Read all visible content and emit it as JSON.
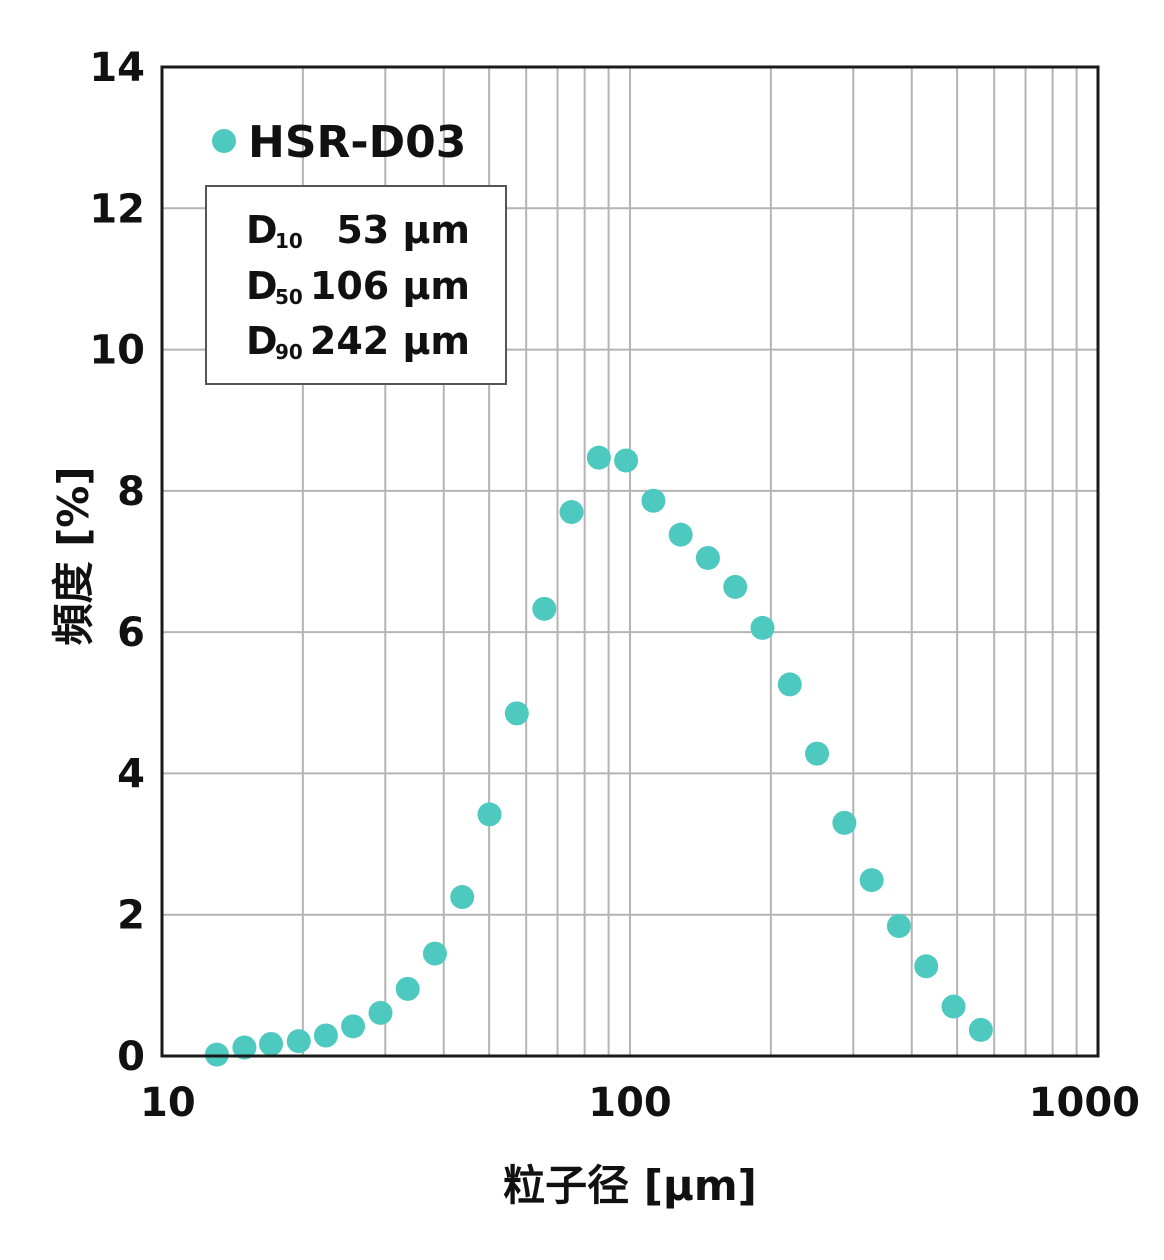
{
  "chart_data": {
    "type": "scatter",
    "xlabel": "粒子径 [µm]",
    "ylabel": "頻度 [%]",
    "x_scale": "log",
    "xlim": [
      10,
      1000
    ],
    "ylim": [
      0,
      14
    ],
    "x_ticks": [
      "10",
      "100",
      "1000"
    ],
    "y_ticks": [
      "0",
      "2",
      "4",
      "6",
      "8",
      "10",
      "12",
      "14"
    ],
    "grid": true,
    "legend_position": "top-left",
    "series": [
      {
        "name": "HSR-D03",
        "color": "#4ec9bf",
        "x": [
          13.1,
          15.0,
          17.1,
          19.6,
          22.4,
          25.6,
          29.3,
          33.5,
          38.3,
          43.8,
          50.1,
          57.3,
          65.6,
          75.0,
          85.8,
          98.1,
          112.2,
          128.3,
          146.7,
          167.8,
          191.9,
          219.5,
          251.0,
          287.1,
          328.4,
          375.5,
          429.5,
          491.3,
          561.9
        ],
        "y": [
          0.02,
          0.12,
          0.17,
          0.21,
          0.29,
          0.42,
          0.61,
          0.95,
          1.45,
          2.25,
          3.42,
          4.85,
          6.33,
          7.7,
          8.47,
          8.43,
          7.86,
          7.38,
          7.05,
          6.64,
          6.06,
          5.26,
          4.28,
          3.3,
          2.49,
          1.84,
          1.27,
          0.7,
          0.37
        ]
      }
    ],
    "stats_box": {
      "rows": [
        {
          "main": "D",
          "sub": "10",
          "value": "53 µm"
        },
        {
          "main": "D",
          "sub": "50",
          "value": "106 µm"
        },
        {
          "main": "D",
          "sub": "90",
          "value": "242 µm"
        }
      ]
    }
  }
}
